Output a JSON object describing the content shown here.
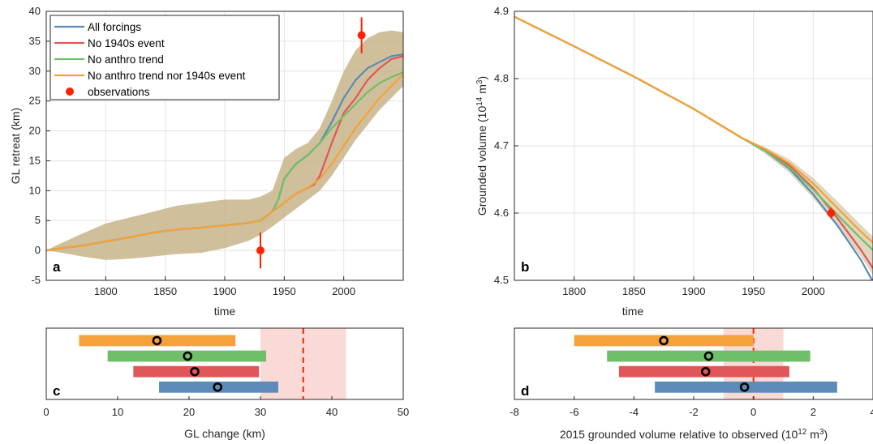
{
  "chart_data": [
    {
      "panel": "a",
      "type": "line",
      "xlabel": "time",
      "ylabel": "GL retreat (km)",
      "xlim": [
        1750,
        2050
      ],
      "ylim": [
        -5,
        40
      ],
      "xticks": [
        1800,
        1850,
        1900,
        1950,
        2000
      ],
      "yticks": [
        -5,
        0,
        5,
        10,
        15,
        20,
        25,
        30,
        35,
        40
      ],
      "grid": true,
      "legend_position": "top-left",
      "legend": [
        "All forcings",
        "No 1940s event",
        "No anthro trend",
        "No anthro trend nor 1940s event",
        "observations"
      ],
      "colors": {
        "all": "#5b8bb8",
        "no1940": "#e15759",
        "noanthro": "#6fbf6a",
        "both": "#f5a23a",
        "obs": "#ff2200",
        "band": "#c8b48a"
      },
      "series": [
        {
          "name": "All forcings",
          "x": [
            1750,
            1760,
            1780,
            1800,
            1820,
            1840,
            1860,
            1880,
            1900,
            1920,
            1930,
            1940,
            1945,
            1950,
            1960,
            1970,
            1980,
            1990,
            2000,
            2010,
            2020,
            2030,
            2040,
            2050
          ],
          "y": [
            0,
            0.3,
            0.8,
            1.5,
            2.2,
            3.0,
            3.5,
            3.8,
            4.2,
            4.6,
            5.0,
            6.5,
            8.5,
            12.0,
            14.5,
            16.0,
            18.0,
            21.5,
            25.5,
            28.5,
            30.5,
            31.5,
            32.5,
            32.8
          ]
        },
        {
          "name": "No 1940s event",
          "x": [
            1750,
            1760,
            1780,
            1800,
            1820,
            1840,
            1860,
            1880,
            1900,
            1920,
            1930,
            1940,
            1950,
            1960,
            1970,
            1975,
            1980,
            1990,
            2000,
            2010,
            2020,
            2030,
            2040,
            2050
          ],
          "y": [
            0,
            0.3,
            0.8,
            1.5,
            2.2,
            3.0,
            3.5,
            3.8,
            4.2,
            4.6,
            5.0,
            6.5,
            8.0,
            9.5,
            10.5,
            11.0,
            12.5,
            18.0,
            23.0,
            25.5,
            28.5,
            30.5,
            32.0,
            32.5
          ]
        },
        {
          "name": "No anthro trend",
          "x": [
            1750,
            1760,
            1780,
            1800,
            1820,
            1840,
            1860,
            1880,
            1900,
            1920,
            1930,
            1940,
            1945,
            1950,
            1960,
            1970,
            1980,
            1990,
            2000,
            2010,
            2020,
            2030,
            2040,
            2050
          ],
          "y": [
            0,
            0.3,
            0.8,
            1.5,
            2.2,
            3.0,
            3.5,
            3.8,
            4.2,
            4.6,
            5.0,
            6.5,
            8.5,
            12.0,
            14.5,
            16.0,
            18.0,
            20.5,
            22.5,
            24.5,
            26.5,
            28.0,
            29.0,
            29.8
          ]
        },
        {
          "name": "No anthro trend nor 1940s event",
          "x": [
            1750,
            1760,
            1780,
            1800,
            1820,
            1840,
            1860,
            1880,
            1900,
            1920,
            1930,
            1940,
            1950,
            1960,
            1970,
            1980,
            1990,
            2000,
            2010,
            2020,
            2030,
            2040,
            2050
          ],
          "y": [
            0,
            0.3,
            0.8,
            1.5,
            2.2,
            3.0,
            3.5,
            3.8,
            4.2,
            4.6,
            5.0,
            6.5,
            8.0,
            9.5,
            10.5,
            12.0,
            14.5,
            17.5,
            20.5,
            23.0,
            25.5,
            27.5,
            29.5
          ]
        }
      ],
      "band": {
        "x": [
          1750,
          1760,
          1780,
          1800,
          1820,
          1840,
          1860,
          1880,
          1900,
          1920,
          1930,
          1940,
          1950,
          1960,
          1970,
          1980,
          1990,
          2000,
          2010,
          2020,
          2030,
          2040,
          2050
        ],
        "lower": [
          0,
          -0.3,
          -1.0,
          -1.6,
          -1.4,
          -1.0,
          -0.6,
          -0.4,
          0.4,
          1.6,
          2.6,
          4.0,
          5.5,
          7.0,
          8.5,
          10.0,
          12.5,
          15.5,
          18.5,
          21.0,
          23.5,
          25.5,
          27.5
        ],
        "upper": [
          0,
          1.0,
          2.8,
          4.5,
          5.5,
          6.5,
          7.5,
          8.0,
          8.5,
          8.5,
          9.0,
          10.0,
          15.5,
          17.0,
          18.0,
          20.5,
          25.0,
          30.0,
          33.5,
          35.5,
          36.5,
          36.8,
          36.5
        ]
      },
      "observations": [
        {
          "x": 1930,
          "y": 0,
          "err": 3
        },
        {
          "x": 2015,
          "y": 36,
          "err": 3
        }
      ]
    },
    {
      "panel": "b",
      "type": "line",
      "xlabel": "time",
      "ylabel": "Grounded volume (10",
      "ylabel_exp": "14",
      "ylabel_tail": " m",
      "ylabel_unit_exp": "3",
      "ylabel_close": ")",
      "xlim": [
        1750,
        2050
      ],
      "ylim": [
        4.5,
        4.9
      ],
      "xticks": [
        1800,
        1850,
        1900,
        1950,
        2000
      ],
      "yticks": [
        4.5,
        4.6,
        4.7,
        4.8,
        4.9
      ],
      "grid": true,
      "series": [
        {
          "name": "All forcings",
          "x": [
            1750,
            1800,
            1850,
            1900,
            1940,
            1960,
            1980,
            2000,
            2020,
            2040,
            2050
          ],
          "y": [
            4.892,
            4.848,
            4.803,
            4.755,
            4.712,
            4.692,
            4.666,
            4.628,
            4.582,
            4.53,
            4.498
          ]
        },
        {
          "name": "No 1940s event",
          "x": [
            1750,
            1800,
            1850,
            1900,
            1940,
            1960,
            1980,
            2000,
            2020,
            2040,
            2050
          ],
          "y": [
            4.892,
            4.848,
            4.803,
            4.755,
            4.712,
            4.694,
            4.671,
            4.637,
            4.593,
            4.545,
            4.518
          ]
        },
        {
          "name": "No anthro trend",
          "x": [
            1750,
            1800,
            1850,
            1900,
            1940,
            1960,
            1980,
            2000,
            2020,
            2040,
            2050
          ],
          "y": [
            4.892,
            4.848,
            4.803,
            4.755,
            4.712,
            4.692,
            4.668,
            4.635,
            4.598,
            4.562,
            4.545
          ]
        },
        {
          "name": "No anthro trend nor 1940s event",
          "x": [
            1750,
            1800,
            1850,
            1900,
            1940,
            1960,
            1980,
            2000,
            2020,
            2040,
            2050
          ],
          "y": [
            4.892,
            4.848,
            4.803,
            4.755,
            4.712,
            4.695,
            4.674,
            4.644,
            4.608,
            4.572,
            4.556
          ]
        }
      ],
      "band": {
        "x": [
          1940,
          1960,
          1980,
          2000,
          2020,
          2040,
          2050
        ],
        "lower": [
          4.712,
          4.688,
          4.66,
          4.622,
          4.58,
          4.535,
          4.508
        ],
        "upper": [
          4.712,
          4.698,
          4.68,
          4.652,
          4.618,
          4.582,
          4.565
        ]
      },
      "observations": [
        {
          "x": 2015,
          "y": 4.6,
          "err": 0.008
        }
      ]
    },
    {
      "panel": "c",
      "type": "bar",
      "xlabel": "GL change (km)",
      "xlim": [
        0,
        50
      ],
      "xticks": [
        0,
        10,
        20,
        30,
        40,
        50
      ],
      "observed": {
        "value": 36,
        "lower": 30,
        "upper": 42
      },
      "bars": [
        {
          "name": "No anthro trend nor 1940s event",
          "low": 4.6,
          "high": 26.5,
          "center": 15.5
        },
        {
          "name": "No anthro trend",
          "low": 8.6,
          "high": 30.8,
          "center": 19.8
        },
        {
          "name": "No 1940s event",
          "low": 12.2,
          "high": 29.8,
          "center": 20.8
        },
        {
          "name": "All forcings",
          "low": 15.8,
          "high": 32.5,
          "center": 24.0
        }
      ]
    },
    {
      "panel": "d",
      "type": "bar",
      "xlabel": "2015 grounded volume relative to observed (10",
      "xlabel_exp": "12",
      "xlabel_tail": " m",
      "xlabel_unit_exp": "3",
      "xlabel_close": ")",
      "xlim": [
        -8,
        4
      ],
      "xticks": [
        -8,
        -6,
        -4,
        -2,
        0,
        2,
        4
      ],
      "observed": {
        "value": 0,
        "lower": -1,
        "upper": 1
      },
      "bars": [
        {
          "name": "No anthro trend nor 1940s event",
          "low": -6.0,
          "high": 0.0,
          "center": -3.0
        },
        {
          "name": "No anthro trend",
          "low": -4.9,
          "high": 1.9,
          "center": -1.5
        },
        {
          "name": "No 1940s event",
          "low": -4.5,
          "high": 1.2,
          "center": -1.6
        },
        {
          "name": "All forcings",
          "low": -3.3,
          "high": 2.8,
          "center": -0.3
        }
      ]
    }
  ],
  "panel_labels": {
    "a": "a",
    "b": "b",
    "c": "c",
    "d": "d"
  }
}
